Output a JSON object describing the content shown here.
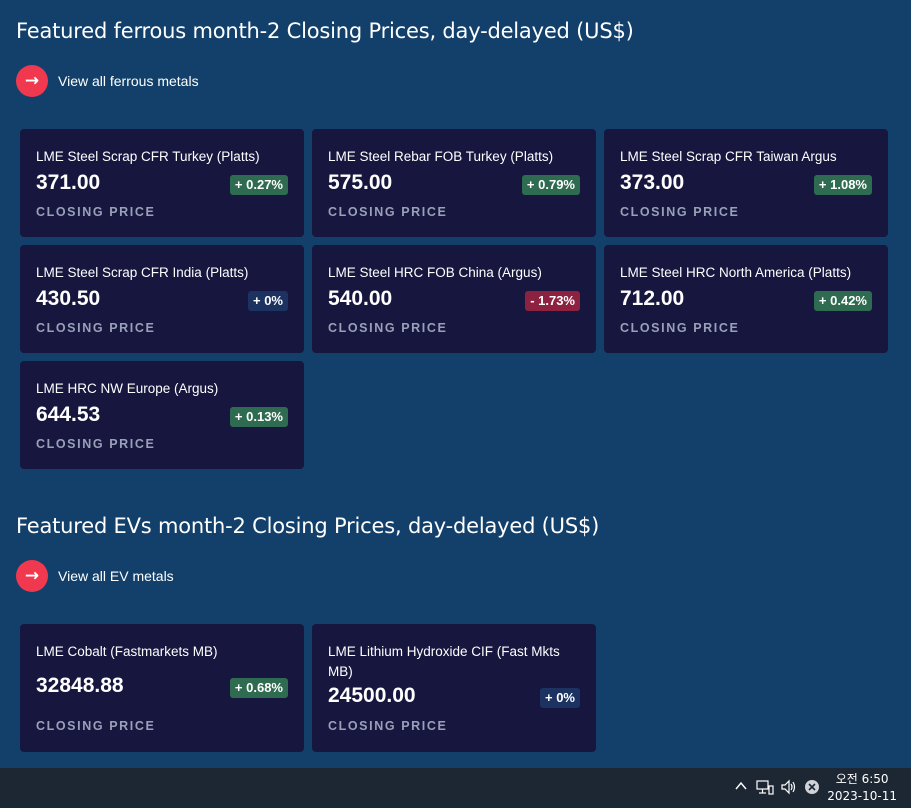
{
  "ferrous": {
    "title": "Featured ferrous month-2 Closing Prices, day-delayed (US$)",
    "view_all_label": "View all ferrous metals",
    "cards": [
      {
        "name": "LME Steel Scrap CFR Turkey (Platts)",
        "price": "371.00",
        "change": "+ 0.27%",
        "trend": "up",
        "label": "CLOSING PRICE"
      },
      {
        "name": "LME Steel Rebar FOB Turkey (Platts)",
        "price": "575.00",
        "change": "+ 0.79%",
        "trend": "up",
        "label": "CLOSING PRICE"
      },
      {
        "name": "LME Steel Scrap CFR Taiwan Argus",
        "price": "373.00",
        "change": "+ 1.08%",
        "trend": "up",
        "label": "CLOSING PRICE"
      },
      {
        "name": "LME Steel Scrap CFR India (Platts)",
        "price": "430.50",
        "change": "+ 0%",
        "trend": "flat",
        "label": "CLOSING PRICE"
      },
      {
        "name": "LME Steel HRC FOB China (Argus)",
        "price": "540.00",
        "change": "- 1.73%",
        "trend": "down",
        "label": "CLOSING PRICE"
      },
      {
        "name": "LME Steel HRC North America (Platts)",
        "price": "712.00",
        "change": "+ 0.42%",
        "trend": "up",
        "label": "CLOSING PRICE"
      },
      {
        "name": "LME HRC NW Europe (Argus)",
        "price": "644.53",
        "change": "+ 0.13%",
        "trend": "up",
        "label": "CLOSING PRICE"
      }
    ]
  },
  "ev": {
    "title": "Featured EVs month-2 Closing Prices, day-delayed (US$)",
    "view_all_label": "View all EV metals",
    "cards": [
      {
        "name": "LME Cobalt (Fastmarkets MB)",
        "price": "32848.88",
        "change": "+ 0.68%",
        "trend": "up",
        "label": "CLOSING PRICE"
      },
      {
        "name": "LME Lithium Hydroxide CIF (Fast Mkts MB)",
        "price": "24500.00",
        "change": "+ 0%",
        "trend": "flat",
        "label": "CLOSING PRICE"
      }
    ]
  },
  "arrow_glyph": "→",
  "colors": {
    "background": "#12406b",
    "card": "#16163f",
    "accent": "#f0394f",
    "up": "#2f6b50",
    "down": "#8c2140",
    "flat": "#1c3260"
  },
  "taskbar": {
    "icons": [
      "chevron-up-icon",
      "network-icon",
      "volume-icon",
      "close-circle-icon"
    ],
    "time": "오전 6:50",
    "date": "2023-10-11"
  }
}
